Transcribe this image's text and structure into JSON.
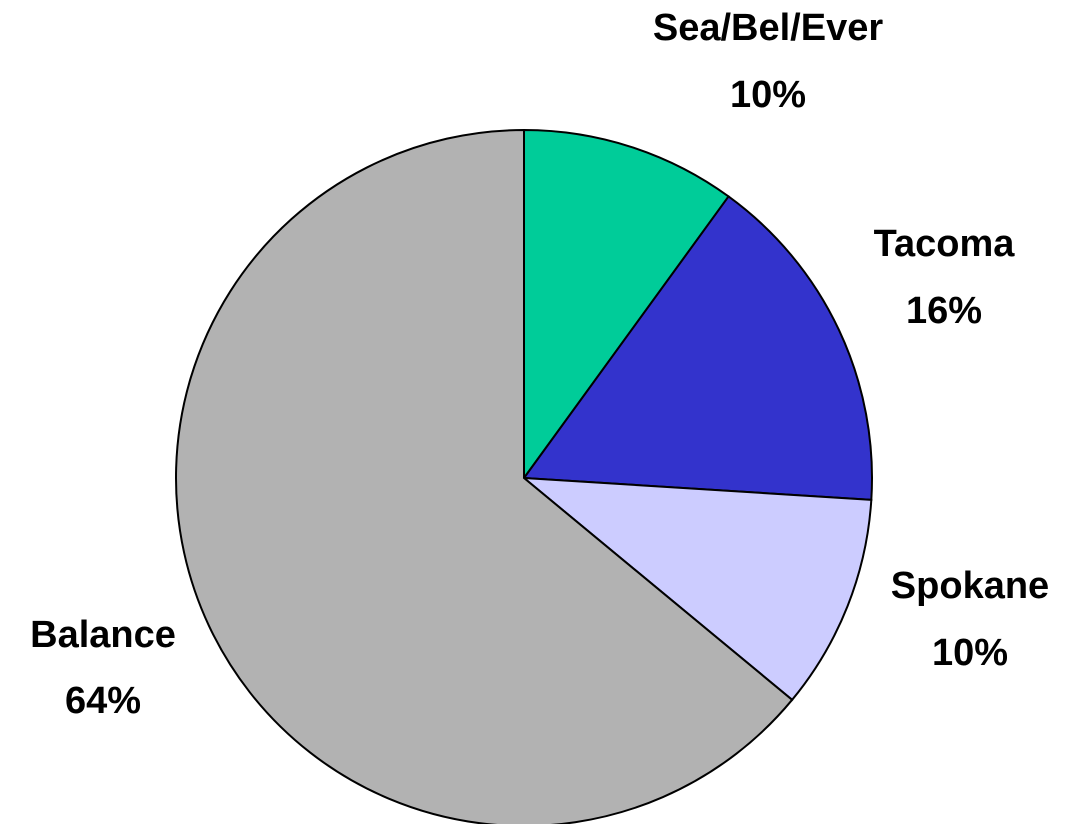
{
  "chart_data": {
    "type": "pie",
    "categories": [
      "Sea/Bel/Ever",
      "Tacoma",
      "Spokane",
      "Balance"
    ],
    "values": [
      10,
      16,
      10,
      64
    ],
    "value_labels": [
      "10%",
      "16%",
      "10%",
      "64%"
    ],
    "colors": [
      "#00cc99",
      "#3333cc",
      "#ccccff",
      "#b2b2b2"
    ]
  }
}
